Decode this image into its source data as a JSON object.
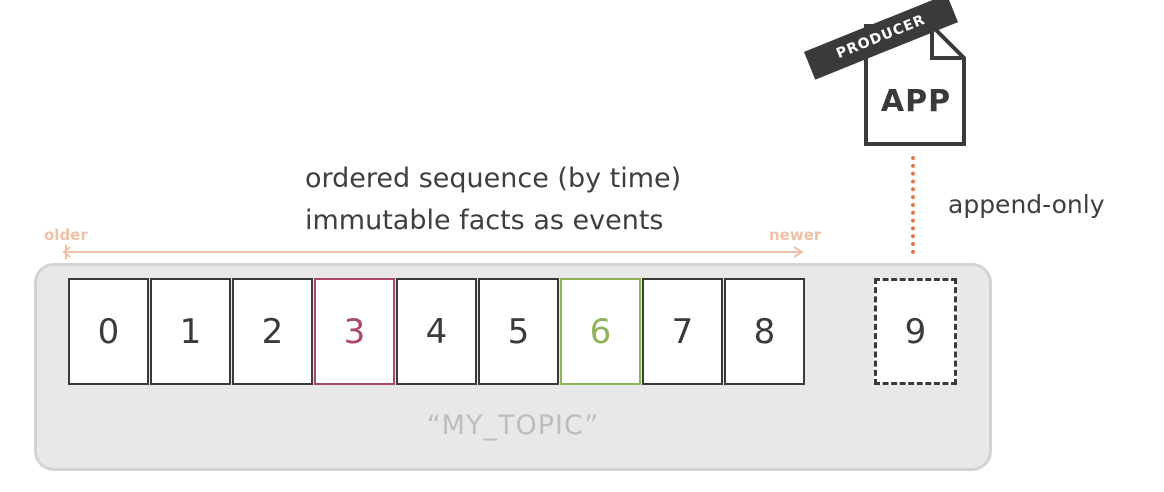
{
  "caption": {
    "line1": "ordered sequence (by time)",
    "line2": "immutable facts as events"
  },
  "timeline": {
    "older_label": "older",
    "newer_label": "newer"
  },
  "topic": {
    "name": "“MY_TOPIC”",
    "cells": [
      {
        "label": "0",
        "highlight": "none"
      },
      {
        "label": "1",
        "highlight": "none"
      },
      {
        "label": "2",
        "highlight": "none"
      },
      {
        "label": "3",
        "highlight": "red"
      },
      {
        "label": "4",
        "highlight": "none"
      },
      {
        "label": "5",
        "highlight": "none"
      },
      {
        "label": "6",
        "highlight": "green"
      },
      {
        "label": "7",
        "highlight": "none"
      },
      {
        "label": "8",
        "highlight": "none"
      }
    ],
    "new_cell": "9"
  },
  "producer": {
    "tag": "PRODUCER",
    "app_label": "APP"
  },
  "append_label": "append-only",
  "colors": {
    "highlight_red": "#a8496a",
    "highlight_green": "#8fb35a",
    "timeline": "#f0c1a8",
    "append_line": "#d97a4a"
  }
}
